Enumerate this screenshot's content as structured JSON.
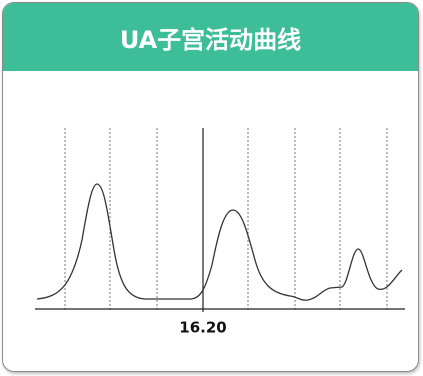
{
  "header": {
    "title": "UA子宫活动曲线"
  },
  "chart": {
    "time_label": "16.20"
  }
}
